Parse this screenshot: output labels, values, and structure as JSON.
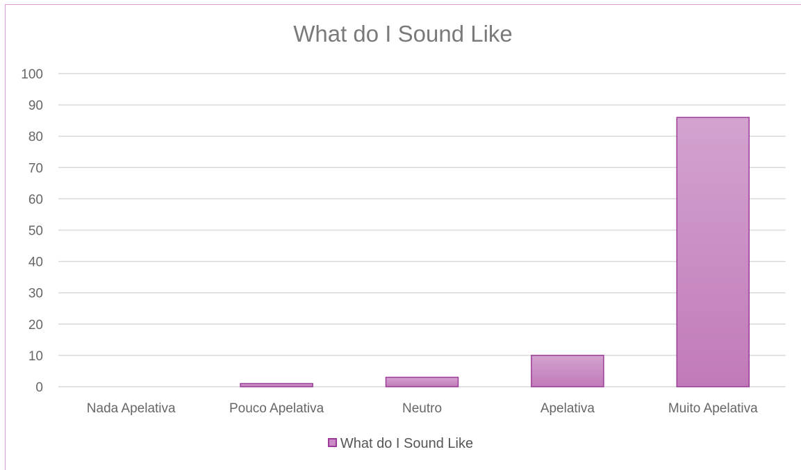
{
  "chart_data": {
    "type": "bar",
    "title": "What do I Sound Like",
    "categories": [
      "Nada Apelativa",
      "Pouco Apelativa",
      "Neutro",
      "Apelativa",
      "Muito Apelativa"
    ],
    "series": [
      {
        "name": "What do I Sound Like",
        "values": [
          0,
          1,
          3,
          10,
          86
        ]
      }
    ],
    "ylim": [
      0,
      100
    ],
    "yticks": [
      "0",
      "10",
      "20",
      "30",
      "40",
      "50",
      "60",
      "70",
      "80",
      "90",
      "100"
    ],
    "grid": true,
    "legend_position": "bottom",
    "colors": {
      "bar_fill_top": "#d3a3cf",
      "bar_fill_bottom": "#c17ab9",
      "bar_stroke": "#9b3a98",
      "frame": "#d79ad7"
    }
  }
}
